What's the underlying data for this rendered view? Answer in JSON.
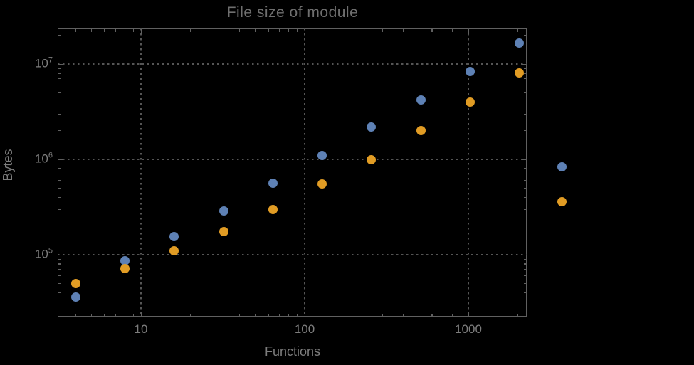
{
  "title": "File size of module",
  "colors": {
    "background": "#000000",
    "frame": "#606060",
    "grid": "#555555",
    "tick_label": "#7d7d7d",
    "title": "#6f6f6f",
    "series1_blue": "#5e81b5",
    "series2_orange": "#e19c24"
  },
  "chart_data": {
    "type": "scatter",
    "title": "File size of module",
    "xlabel": "Functions",
    "ylabel": "Bytes",
    "x_scale": "log",
    "y_scale": "log",
    "xlim": [
      3.1,
      2270
    ],
    "ylim": [
      22400,
      23600000
    ],
    "x_major_ticks": [
      10,
      100,
      1000
    ],
    "y_major_tick_exponents": [
      5,
      6,
      7
    ],
    "grid": true,
    "legend_position": "right-of-frame",
    "x": [
      4,
      8,
      16,
      32,
      64,
      128,
      256,
      512,
      1024,
      2048
    ],
    "series": [
      {
        "name": "series-1-blue",
        "color": "#5e81b5",
        "values": [
          36000,
          87000,
          155000,
          290000,
          560000,
          1100000,
          2200000,
          4200000,
          8300000,
          16700000
        ]
      },
      {
        "name": "series-2-orange",
        "color": "#e19c24",
        "values": [
          50000,
          71000,
          110000,
          175000,
          300000,
          550000,
          1000000,
          2000000,
          4000000,
          8000000
        ]
      }
    ],
    "legend_markers": [
      {
        "name": "legend-marker-series-1",
        "color": "#5e81b5",
        "label": ""
      },
      {
        "name": "legend-marker-series-2",
        "color": "#e19c24",
        "label": ""
      }
    ]
  }
}
